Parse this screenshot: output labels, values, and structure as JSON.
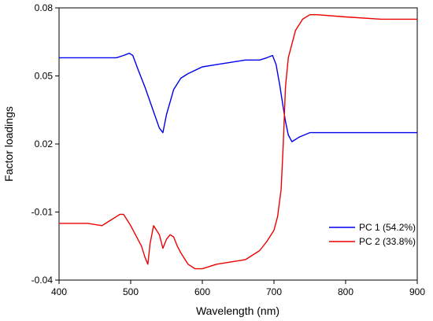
{
  "chart_data": {
    "type": "line",
    "title": "",
    "xlabel": "Wavelength (nm)",
    "ylabel": "Factor loadings",
    "xlim": [
      400,
      900
    ],
    "ylim": [
      -0.04,
      0.08
    ],
    "x_ticks": [
      400,
      500,
      600,
      700,
      800,
      900
    ],
    "x_tick_labels": [
      "400",
      "500",
      "600",
      "700",
      "800",
      "900"
    ],
    "y_ticks": [
      -0.04,
      -0.01,
      0.02,
      0.05,
      0.08
    ],
    "y_tick_labels": [
      "-0.04",
      "-0.01",
      "0.02",
      "0.05",
      "0.08"
    ],
    "grid": false,
    "legend_position": "lower-right",
    "series": [
      {
        "name": "PC 1 (54.2%)",
        "color": "#0000ee",
        "x": [
          400,
          420,
          440,
          460,
          480,
          490,
          498,
          503,
          510,
          520,
          530,
          540,
          545,
          550,
          560,
          570,
          580,
          600,
          620,
          640,
          660,
          680,
          690,
          698,
          703,
          708,
          712,
          716,
          720,
          725,
          735,
          750,
          775,
          800,
          850,
          900
        ],
        "y": [
          0.058,
          0.058,
          0.058,
          0.058,
          0.058,
          0.059,
          0.06,
          0.059,
          0.053,
          0.045,
          0.036,
          0.027,
          0.025,
          0.033,
          0.044,
          0.049,
          0.051,
          0.054,
          0.055,
          0.056,
          0.057,
          0.057,
          0.058,
          0.059,
          0.055,
          0.046,
          0.038,
          0.03,
          0.024,
          0.021,
          0.023,
          0.025,
          0.025,
          0.025,
          0.025,
          0.025
        ]
      },
      {
        "name": "PC 2 (33.8%)",
        "color": "#ee0000",
        "x": [
          400,
          420,
          440,
          460,
          470,
          480,
          485,
          490,
          500,
          510,
          515,
          520,
          524,
          527,
          532,
          536,
          540,
          545,
          550,
          555,
          560,
          565,
          570,
          580,
          590,
          600,
          620,
          640,
          660,
          680,
          690,
          700,
          705,
          710,
          713,
          716,
          720,
          730,
          740,
          750,
          760,
          800,
          850,
          900
        ],
        "y": [
          -0.015,
          -0.015,
          -0.015,
          -0.016,
          -0.014,
          -0.012,
          -0.011,
          -0.011,
          -0.016,
          -0.022,
          -0.025,
          -0.03,
          -0.033,
          -0.024,
          -0.016,
          -0.018,
          -0.02,
          -0.026,
          -0.022,
          -0.02,
          -0.021,
          -0.025,
          -0.028,
          -0.033,
          -0.035,
          -0.035,
          -0.033,
          -0.032,
          -0.031,
          -0.027,
          -0.023,
          -0.018,
          -0.012,
          0.0,
          0.02,
          0.045,
          0.058,
          0.07,
          0.075,
          0.077,
          0.077,
          0.076,
          0.075,
          0.075
        ]
      }
    ]
  }
}
